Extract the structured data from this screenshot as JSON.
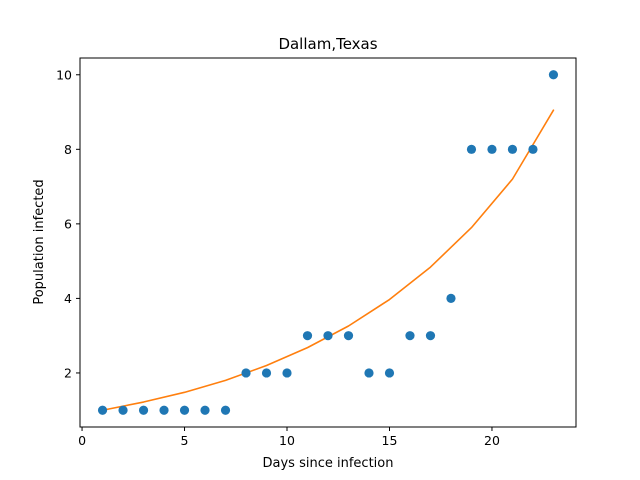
{
  "chart_data": {
    "type": "scatter",
    "title": "Dallam,Texas",
    "xlabel": "Days since infection",
    "ylabel": "Population infected",
    "xlim": [
      -0.1,
      24.1
    ],
    "ylim": [
      0.55,
      10.45
    ],
    "xticks": [
      0,
      5,
      10,
      15,
      20
    ],
    "yticks": [
      2,
      4,
      6,
      8,
      10
    ],
    "grid": false,
    "series": [
      {
        "kind": "scatter",
        "color": "#1f77b4",
        "x": [
          1,
          2,
          3,
          4,
          5,
          6,
          7,
          8,
          9,
          10,
          11,
          12,
          13,
          14,
          15,
          16,
          17,
          18,
          19,
          20,
          21,
          22,
          23
        ],
        "y": [
          1,
          1,
          1,
          1,
          1,
          1,
          1,
          2,
          2,
          2,
          3,
          3,
          3,
          2,
          2,
          3,
          3,
          4,
          8,
          8,
          8,
          8,
          10
        ]
      },
      {
        "kind": "line",
        "color": "#ff7f0e",
        "x": [
          1,
          3,
          5,
          7,
          9,
          11,
          13,
          15,
          17,
          19,
          21,
          23
        ],
        "y": [
          1.0,
          1.22,
          1.48,
          1.8,
          2.2,
          2.68,
          3.26,
          3.97,
          4.84,
          5.9,
          7.2,
          9.05
        ]
      }
    ]
  }
}
